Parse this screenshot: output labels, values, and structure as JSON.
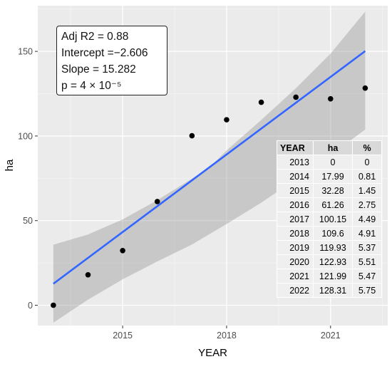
{
  "chart_data": {
    "type": "scatter",
    "xlabel": "YEAR",
    "ylabel": "ha",
    "x_ticks": [
      2015,
      2018,
      2021
    ],
    "y_ticks": [
      0,
      50,
      100,
      150
    ],
    "xlim": [
      2012.55,
      2022.65
    ],
    "ylim": [
      -12,
      177
    ],
    "grid": true,
    "points": {
      "x": [
        2013,
        2014,
        2015,
        2016,
        2017,
        2018,
        2019,
        2020,
        2021,
        2022
      ],
      "y": [
        0,
        17.99,
        32.28,
        61.26,
        100.15,
        109.6,
        119.93,
        122.93,
        121.99,
        128.31
      ]
    },
    "fit": {
      "x_start": 2013,
      "x_end": 2022,
      "y_start": 12.7,
      "y_end": 150.2
    },
    "confidence_band": {
      "x": [
        2013,
        2014,
        2015,
        2016,
        2017,
        2017.5,
        2018,
        2019,
        2020,
        2021,
        2022
      ],
      "upper": [
        35.8,
        41.8,
        50.7,
        62.1,
        74.8,
        81.3,
        91.5,
        109.5,
        128.2,
        148.7,
        173.5
      ],
      "lower": [
        -10.3,
        3.3,
        15.3,
        25.9,
        35.9,
        42.0,
        48.0,
        60.6,
        74.5,
        88.7,
        103.8
      ]
    },
    "stats": {
      "adj_r2": "Adj R2 =  0.88",
      "intercept": "Intercept =−2.606",
      "slope": "Slope = 15.282",
      "p": "p = 4 × 10⁻⁵"
    },
    "table": {
      "headers": [
        "YEAR",
        "ha",
        "%"
      ],
      "rows": [
        [
          "2013",
          "0",
          "0"
        ],
        [
          "2014",
          "17.99",
          "0.81"
        ],
        [
          "2015",
          "32.28",
          "1.45"
        ],
        [
          "2016",
          "61.26",
          "2.75"
        ],
        [
          "2017",
          "100.15",
          "4.49"
        ],
        [
          "2018",
          "109.6",
          "4.91"
        ],
        [
          "2019",
          "119.93",
          "5.37"
        ],
        [
          "2020",
          "122.93",
          "5.51"
        ],
        [
          "2021",
          "121.99",
          "5.47"
        ],
        [
          "2022",
          "128.31",
          "5.75"
        ]
      ]
    },
    "colors": {
      "panel": "#ebebeb",
      "grid_major": "#ffffff",
      "grid_minor": "#f5f5f5",
      "band": "#999999",
      "line": "#3366ff",
      "point": "#000000",
      "axis_text": "#4d4d4d"
    }
  }
}
